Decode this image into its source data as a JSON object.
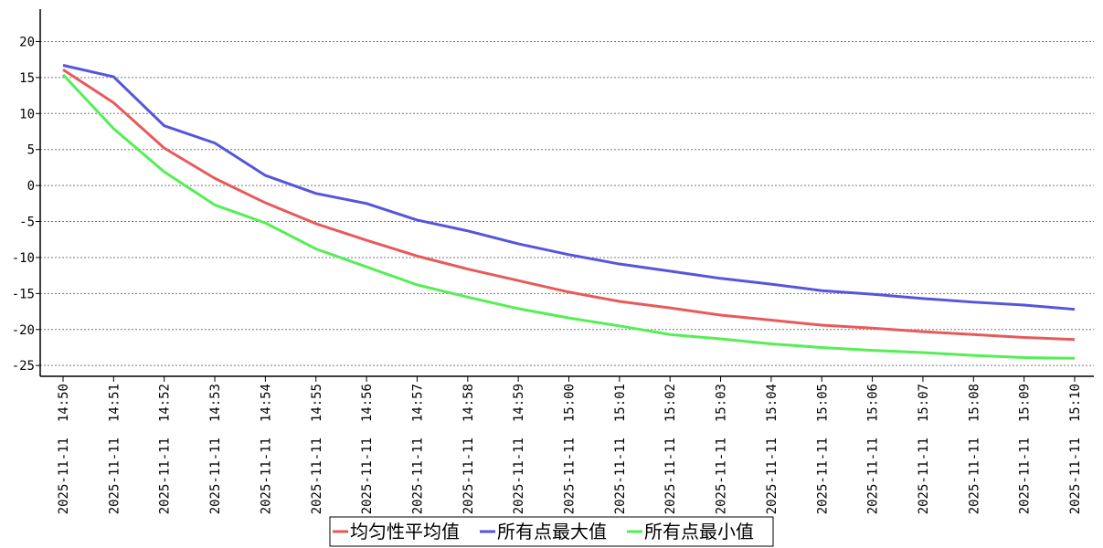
{
  "chart_data": {
    "type": "line",
    "title": "",
    "xlabel": "",
    "ylabel": "",
    "ylim": [
      -26.5,
      24.5
    ],
    "yticks": [
      20,
      15,
      10,
      5,
      0,
      -5,
      -10,
      -15,
      -20,
      -25
    ],
    "grid": "horizontal-dotted",
    "legend_position": "bottom-center",
    "categories": [
      "2025-11-11 14:50",
      "2025-11-11 14:51",
      "2025-11-11 14:52",
      "2025-11-11 14:53",
      "2025-11-11 14:54",
      "2025-11-11 14:55",
      "2025-11-11 14:56",
      "2025-11-11 14:57",
      "2025-11-11 14:58",
      "2025-11-11 14:59",
      "2025-11-11 15:00",
      "2025-11-11 15:01",
      "2025-11-11 15:02",
      "2025-11-11 15:03",
      "2025-11-11 15:04",
      "2025-11-11 15:05",
      "2025-11-11 15:06",
      "2025-11-11 15:07",
      "2025-11-11 15:08",
      "2025-11-11 15:09",
      "2025-11-11 15:10"
    ],
    "series": [
      {
        "name": "均匀性平均值",
        "color": "#e85a5a",
        "values": [
          16.1,
          11.5,
          5.2,
          1.0,
          -2.4,
          -5.3,
          -7.6,
          -9.8,
          -11.6,
          -13.2,
          -14.8,
          -16.1,
          -17.0,
          -18.0,
          -18.7,
          -19.4,
          -19.8,
          -20.3,
          -20.7,
          -21.1,
          -21.4
        ]
      },
      {
        "name": "所有点最大值",
        "color": "#5555dd",
        "values": [
          16.7,
          15.1,
          8.3,
          5.9,
          1.4,
          -1.1,
          -2.5,
          -4.8,
          -6.3,
          -8.1,
          -9.6,
          -10.9,
          -11.9,
          -12.9,
          -13.7,
          -14.6,
          -15.1,
          -15.7,
          -16.2,
          -16.6,
          -17.2
        ]
      },
      {
        "name": "所有点最小值",
        "color": "#55ee55",
        "values": [
          15.4,
          7.9,
          1.9,
          -2.7,
          -5.2,
          -8.8,
          -11.3,
          -13.8,
          -15.5,
          -17.1,
          -18.4,
          -19.5,
          -20.7,
          -21.3,
          -22.0,
          -22.5,
          -22.9,
          -23.2,
          -23.6,
          -23.9,
          -24.0
        ]
      }
    ]
  }
}
